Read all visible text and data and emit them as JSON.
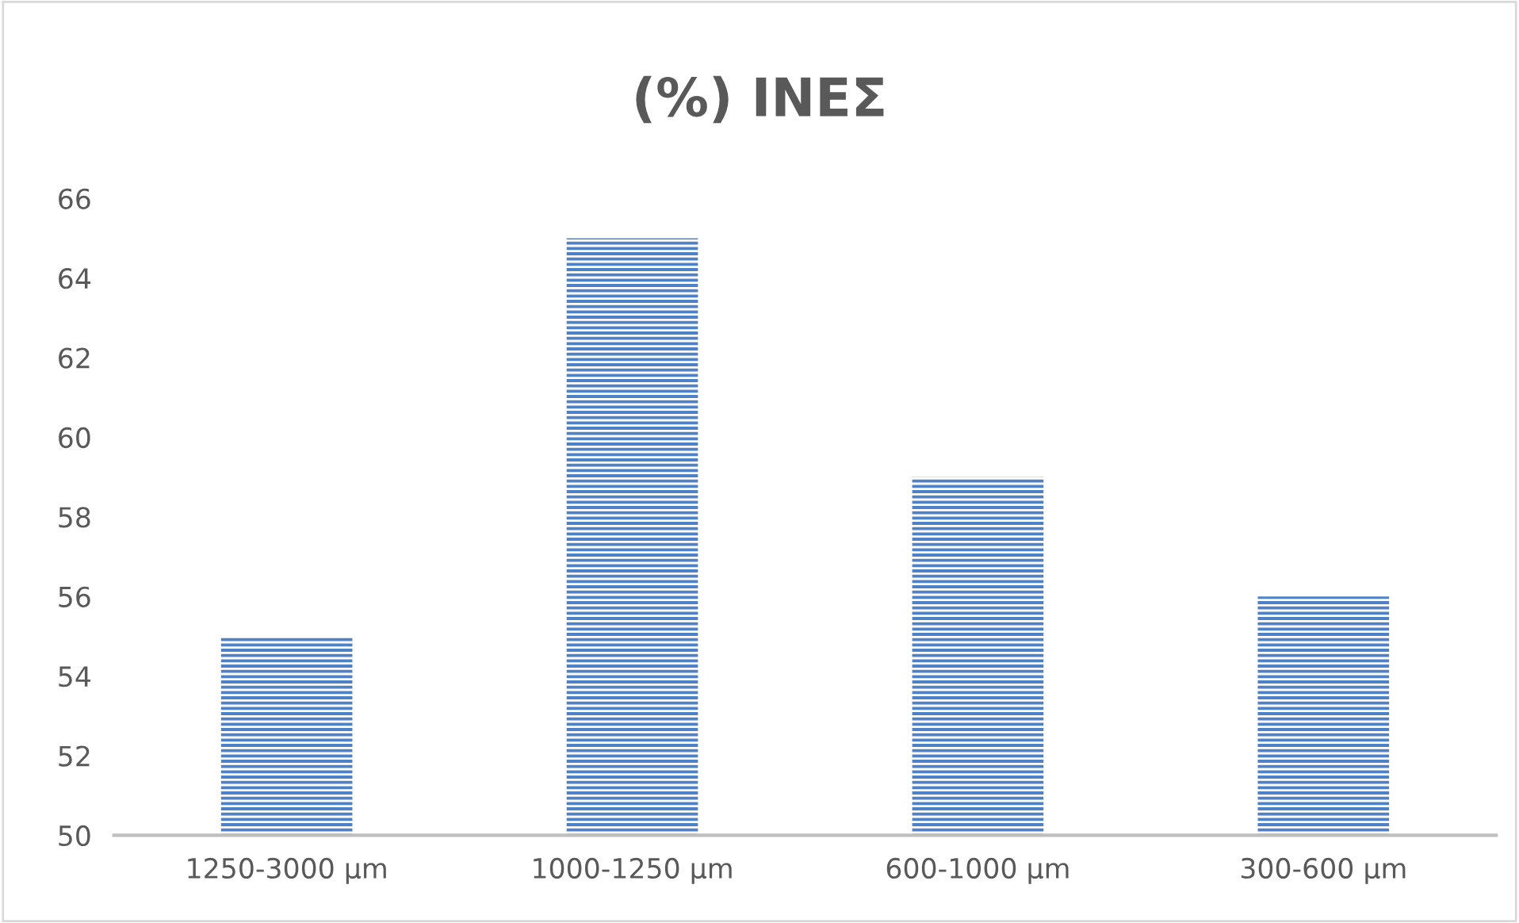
{
  "chart_data": {
    "type": "bar",
    "title": "(%) ΙΝΕΣ",
    "categories": [
      "1250-3000 μm",
      "1000-1250 μm",
      "600-1000 μm",
      "300-600 μm"
    ],
    "values": [
      55,
      65,
      59,
      56
    ],
    "color": "#4f81c7",
    "ylim": [
      50,
      66
    ],
    "yticks": [
      50,
      52,
      54,
      56,
      58,
      60,
      62,
      64,
      66
    ],
    "grid": false,
    "legend": false
  }
}
